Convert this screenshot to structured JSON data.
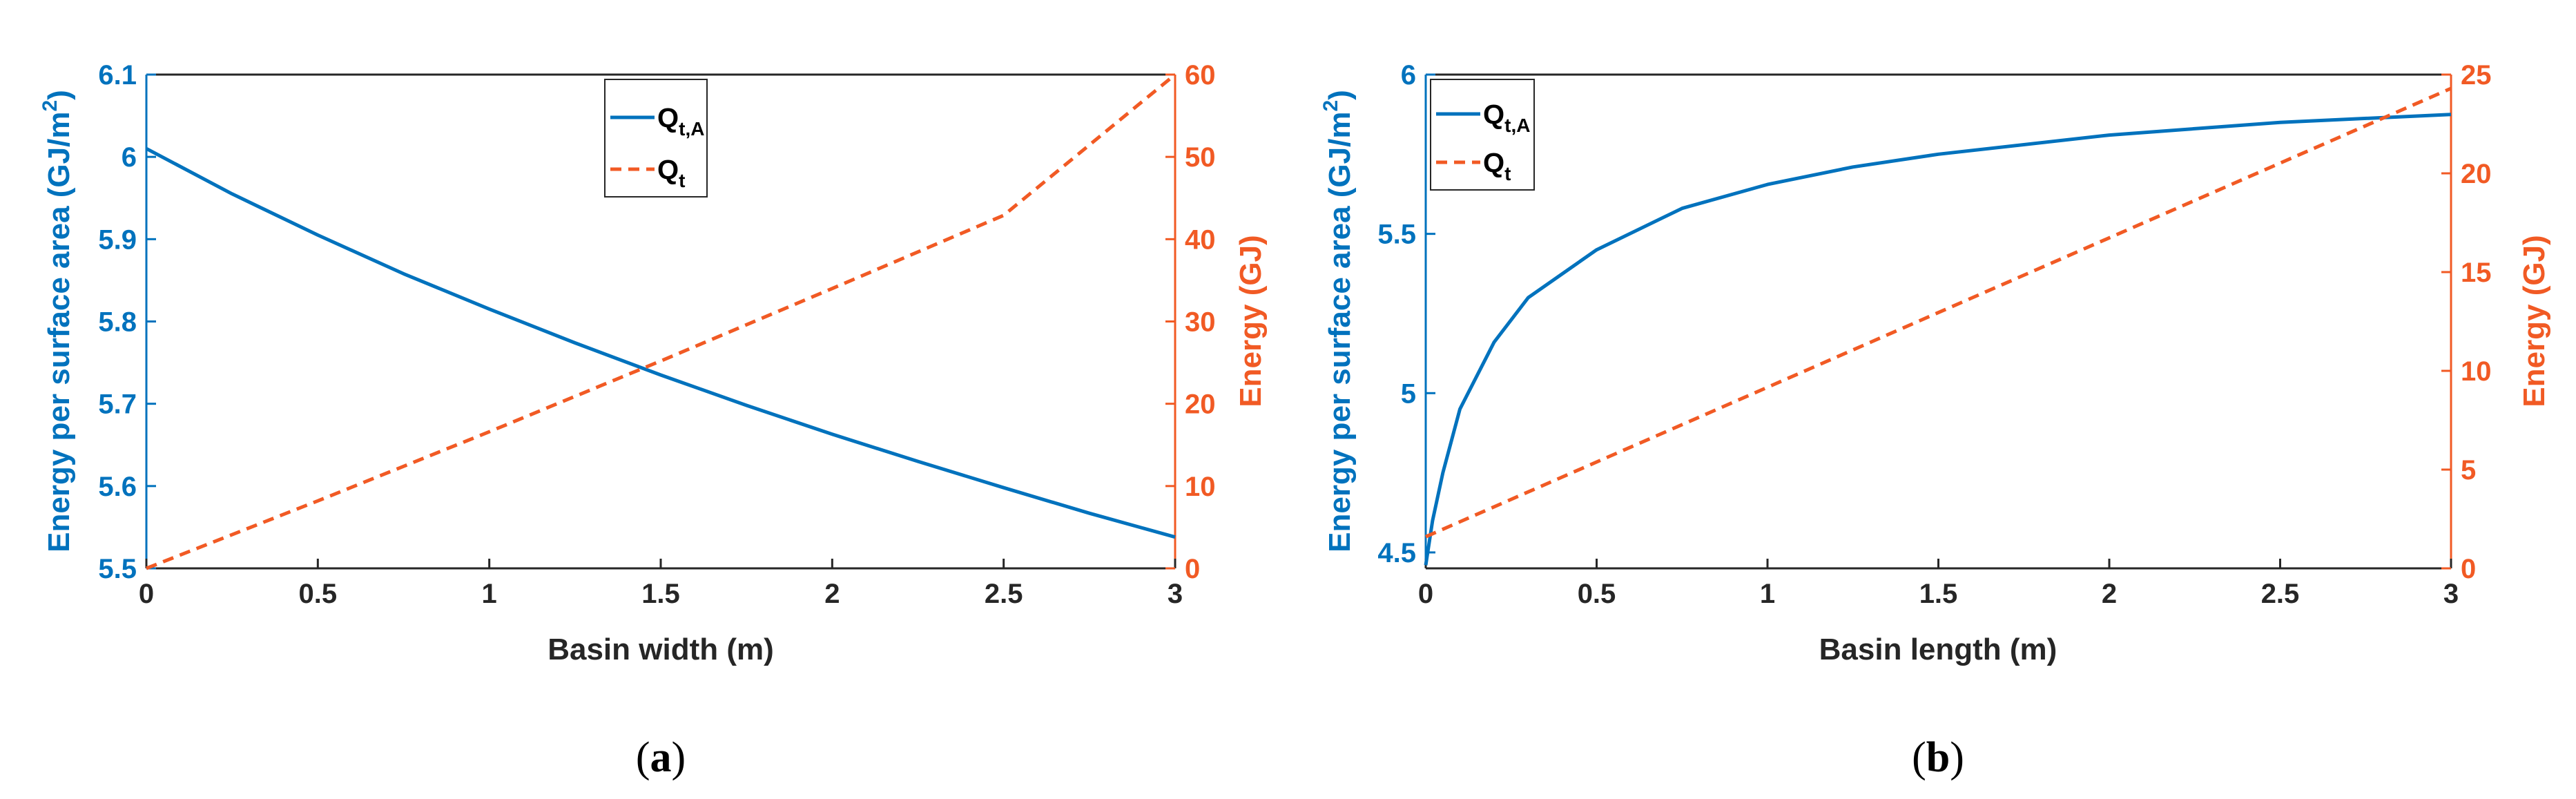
{
  "colors": {
    "left_axis": "#0072BD",
    "right_axis": "#F15A24",
    "axes": "#262626"
  },
  "chart_data": [
    {
      "type": "line",
      "panel": "a",
      "caption": "a",
      "xlabel": "Basin width (m)",
      "ylabel_left_main": "Energy per surface area (GJ/m",
      "ylabel_left_sup": "2",
      "ylabel_left_close": ")",
      "ylabel_right": "Energy (GJ)",
      "xlim": [
        0,
        3
      ],
      "ylim_left": [
        5.5,
        6.1
      ],
      "ylim_right": [
        0,
        60
      ],
      "xticks": [
        "0",
        "0.5",
        "1",
        "1.5",
        "2",
        "2.5",
        "3"
      ],
      "yticks_left": [
        "5.5",
        "5.6",
        "5.7",
        "5.8",
        "5.9",
        "6",
        "6.1"
      ],
      "yticks_right": [
        "0",
        "10",
        "20",
        "30",
        "40",
        "50",
        "60"
      ],
      "legend_position": "top-center",
      "series": [
        {
          "name": "Q",
          "name_sub": "t,A",
          "axis": "left",
          "style": "solid",
          "color": "#0072BD",
          "x": [
            0,
            0.25,
            0.5,
            0.75,
            1.0,
            1.25,
            1.5,
            1.75,
            2.0,
            2.25,
            2.5,
            2.75,
            3.0
          ],
          "y": [
            6.01,
            5.955,
            5.905,
            5.858,
            5.815,
            5.774,
            5.735,
            5.698,
            5.663,
            5.63,
            5.598,
            5.567,
            5.538
          ]
        },
        {
          "name": "Q",
          "name_sub": "t",
          "axis": "right",
          "style": "dashed",
          "color": "#F15A24",
          "x": [
            0,
            0.5,
            1.0,
            1.5,
            2.0,
            2.5,
            3.0
          ],
          "y": [
            0,
            8.2,
            16.6,
            25.2,
            34.0,
            42.9,
            60.0
          ]
        }
      ]
    },
    {
      "type": "line",
      "panel": "b",
      "caption": "b",
      "xlabel": "Basin length (m)",
      "ylabel_left_main": "Energy per surface area (GJ/m",
      "ylabel_left_sup": "2",
      "ylabel_left_close": ")",
      "ylabel_right": "Energy (GJ)",
      "xlim": [
        0,
        3
      ],
      "ylim_left": [
        4.45,
        6.0
      ],
      "ylim_right": [
        0,
        25
      ],
      "xticks": [
        "0",
        "0.5",
        "1",
        "1.5",
        "2",
        "2.5",
        "3"
      ],
      "yticks_left": [
        "4.5",
        "5",
        "5.5",
        "6"
      ],
      "yticks_right": [
        "0",
        "5",
        "10",
        "15",
        "20",
        "25"
      ],
      "legend_position": "top-left",
      "series": [
        {
          "name": "Q",
          "name_sub": "t,A",
          "axis": "left",
          "style": "solid",
          "color": "#0072BD",
          "x": [
            0,
            0.02,
            0.05,
            0.1,
            0.2,
            0.3,
            0.5,
            0.75,
            1.0,
            1.25,
            1.5,
            2.0,
            2.5,
            3.0
          ],
          "y": [
            4.46,
            4.6,
            4.75,
            4.95,
            5.16,
            5.3,
            5.45,
            5.58,
            5.655,
            5.71,
            5.75,
            5.81,
            5.85,
            5.875
          ]
        },
        {
          "name": "Q",
          "name_sub": "t",
          "axis": "right",
          "style": "dashed",
          "color": "#F15A24",
          "x": [
            0,
            3.0
          ],
          "y": [
            1.6,
            24.3
          ]
        }
      ]
    }
  ]
}
